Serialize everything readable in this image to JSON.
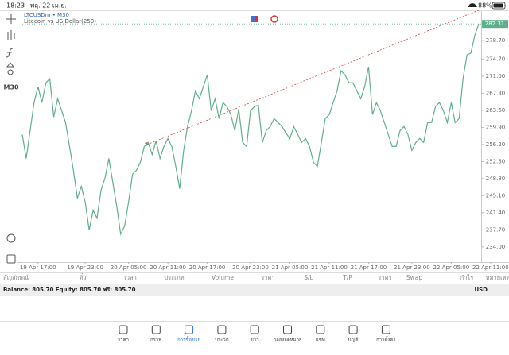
{
  "status_bar": {
    "time": "18:23",
    "date": "พฤ. 22 เม.ย.",
    "battery": "88%"
  },
  "toolbar": {
    "timeframe": "M30"
  },
  "chart_data": {
    "type": "line",
    "title": "LTCUSDm • M30",
    "subtitle": "Litecoin vs US Dollar(250)",
    "color": "#5fb08a",
    "values": [
      258.35,
      253.17,
      259.21,
      265.26,
      268.71,
      265.26,
      269.58,
      270.44,
      262.15,
      266.12,
      263.53,
      260.94,
      255.76,
      250.58,
      244.53,
      247.13,
      243.67,
      237.63,
      241.94,
      240.22,
      246.26,
      248.85,
      253.17,
      247.99,
      242.81,
      236.76,
      238.49,
      243.67,
      249.72,
      250.58,
      252.31,
      255.76,
      256.62,
      254.03,
      256.97,
      253.17,
      255.76,
      257.49,
      255.76,
      251.44,
      246.61,
      254.9,
      260.08,
      263.53,
      267.85,
      266.12,
      268.71,
      271.3,
      263.53,
      266.12,
      261.8,
      265.26,
      264.4,
      262.67,
      259.21,
      263.88,
      256.62,
      255.76,
      263.53,
      264.4,
      264.74,
      256.62,
      259.21,
      260.08,
      261.8,
      260.94,
      260.08,
      258.7,
      257.49,
      260.08,
      258.35,
      256.62,
      257.49,
      255.76,
      252.31,
      251.44,
      256.62,
      261.8,
      262.67,
      265.26,
      267.85,
      272.17,
      271.3,
      269.58,
      269.58,
      267.85,
      266.12,
      268.71,
      273.03,
      262.67,
      265.26,
      263.53,
      260.94,
      258.35,
      255.76,
      255.76,
      259.21,
      260.08,
      258.35,
      254.9,
      256.62,
      257.49,
      256.62,
      260.94,
      260.94,
      264.4,
      265.26,
      263.53,
      260.94,
      265.26,
      260.94,
      261.8,
      270.44,
      275.62,
      275.97,
      279.94,
      282.31
    ],
    "ylim": [
      230.7,
      285.1
    ],
    "yticks": [
      {
        "value": 278.7,
        "label": "278.70"
      },
      {
        "value": 274.7,
        "label": "274.70"
      },
      {
        "value": 271,
        "label": "271.00"
      },
      {
        "value": 267.3,
        "label": "267.30"
      },
      {
        "value": 263.6,
        "label": "263.60"
      },
      {
        "value": 259.9,
        "label": "259.90"
      },
      {
        "value": 256.2,
        "label": "256.20"
      },
      {
        "value": 252.5,
        "label": "252.50"
      },
      {
        "value": 248.8,
        "label": "248.80"
      },
      {
        "value": 245.1,
        "label": "245.10"
      },
      {
        "value": 241.4,
        "label": "241.40"
      },
      {
        "value": 237.7,
        "label": "237.70"
      },
      {
        "value": 234,
        "label": "234.00"
      }
    ],
    "xlim": [
      0,
      116
    ],
    "xticks": [
      {
        "value": 4,
        "label": "19 Apr 17:00"
      },
      {
        "value": 16,
        "label": "19 Apr 23:00"
      },
      {
        "value": 27,
        "label": "20 Apr 05:00"
      },
      {
        "value": 37,
        "label": "20 Apr 11:00"
      },
      {
        "value": 47,
        "label": "20 Apr 17:00"
      },
      {
        "value": 58,
        "label": "20 Apr 23:00"
      },
      {
        "value": 68,
        "label": "21 Apr 05:00"
      },
      {
        "value": 78,
        "label": "21 Apr 11:00"
      },
      {
        "value": 88,
        "label": "21 Apr 17:00"
      },
      {
        "value": 99,
        "label": "21 Apr 23:00"
      },
      {
        "value": 109,
        "label": "22 Apr 05:00"
      },
      {
        "value": 119,
        "label": "22 Apr 11:00"
      }
    ],
    "current_price": 282.31,
    "grid": false
  },
  "positions_table": {
    "columns": [
      "สัญลักษณ์",
      "ตั๋ว",
      "เวลา",
      "ประเภท",
      "Volume",
      "ราคา",
      "S/L",
      "T/P",
      "ราคา",
      "Swap",
      "กำไร",
      "หมายเหตุ"
    ]
  },
  "account_bar": {
    "summary": "Balance: 805.70 Equity: 805.70 ฟรี: 805.70",
    "currency": "USD"
  },
  "tab_bar": {
    "tabs": [
      "ราคา",
      "กราฟ",
      "การซื้อขาย",
      "ประวัติ",
      "ข่าว",
      "กล่องจดหมาย",
      "แชท",
      "บัญชี",
      "การตั้งค่า"
    ],
    "active": 2
  }
}
